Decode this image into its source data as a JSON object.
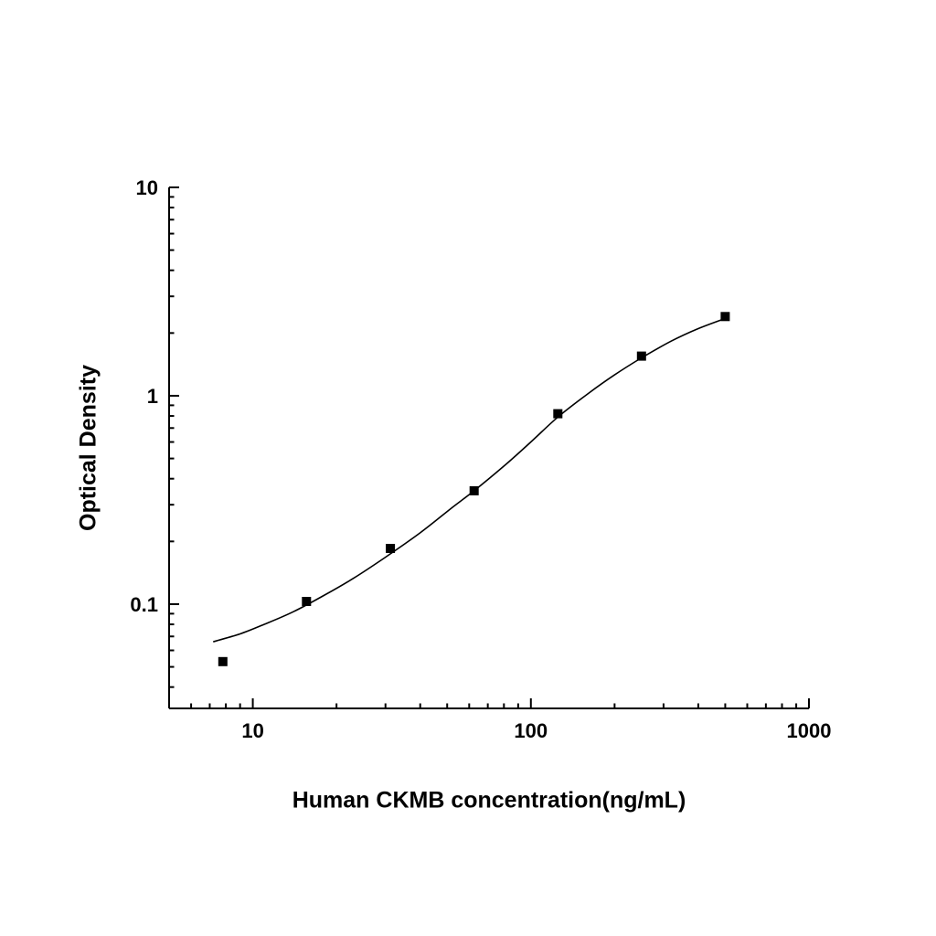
{
  "figure": {
    "background": "#ffffff",
    "foreground": "#000000"
  },
  "chart_data": {
    "type": "scatter",
    "title": "",
    "xlabel": "Human CKMB concentration(ng/mL)",
    "ylabel": "Optical Density",
    "x_scale": "log",
    "y_scale": "log",
    "xlim": [
      5,
      1000
    ],
    "ylim": [
      0.0316,
      10
    ],
    "x_ticks": [
      10,
      100,
      1000
    ],
    "y_ticks": [
      0.1,
      1,
      10
    ],
    "grid": false,
    "legend": "none",
    "marker": {
      "shape": "square",
      "color": "#000000",
      "size": 10
    },
    "line_color": "#000000",
    "points": {
      "x": [
        7.8,
        15.6,
        31.25,
        62.5,
        125,
        250,
        500
      ],
      "y": [
        0.053,
        0.103,
        0.185,
        0.35,
        0.82,
        1.55,
        2.4
      ]
    },
    "curve": [
      [
        7.2,
        0.066
      ],
      [
        9,
        0.072
      ],
      [
        11,
        0.08
      ],
      [
        14,
        0.092
      ],
      [
        18,
        0.11
      ],
      [
        23,
        0.133
      ],
      [
        30,
        0.168
      ],
      [
        40,
        0.22
      ],
      [
        52,
        0.29
      ],
      [
        62.5,
        0.35
      ],
      [
        80,
        0.46
      ],
      [
        100,
        0.6
      ],
      [
        125,
        0.79
      ],
      [
        160,
        1.02
      ],
      [
        200,
        1.26
      ],
      [
        250,
        1.52
      ],
      [
        320,
        1.83
      ],
      [
        400,
        2.1
      ],
      [
        500,
        2.35
      ]
    ]
  }
}
